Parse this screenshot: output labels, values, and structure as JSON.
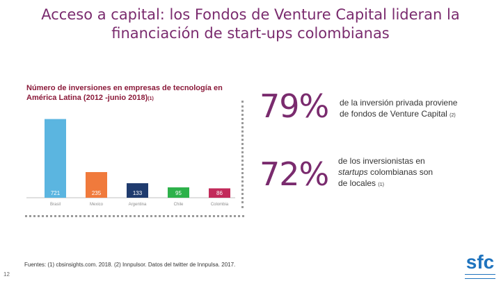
{
  "title": {
    "line1": "Acceso a capital: los Fondos de Venture Capital lideran la",
    "line2": "financiación de start-ups colombianas"
  },
  "stats": [
    {
      "value": "79%",
      "text1": "de la inversión privada proviene",
      "text2": "de fondos de Venture Capital",
      "note": "(2)"
    },
    {
      "value": "72%",
      "text1": "de los inversionistas en",
      "text2_italic": "startups",
      "text2": " colombianas son",
      "text3": "de locales",
      "note": "(1)"
    }
  ],
  "footnote": "Fuentes: (1) cbsinsights.com. 2018. (2) Innpulsor. Datos del twitter de Innpulsa. 2017.",
  "page_number": "12",
  "logo": "sfc",
  "colors": {
    "title": "#7a2b6e",
    "chart_title": "#8b1a3a",
    "brasil": "#5bb5e0",
    "mexico": "#f07a3c",
    "argentina": "#1f3b6e",
    "chile": "#2db14a",
    "colombia": "#c22a5a"
  },
  "chart_data": {
    "type": "bar",
    "title": "Número de inversiones en empresas de tecnología en América Latina (2012 -junio 2018)",
    "title_note": "(1)",
    "categories": [
      "Brasil",
      "Mexico",
      "Argentina",
      "Chile",
      "Colombia"
    ],
    "values": [
      721,
      235,
      133,
      95,
      86
    ],
    "ylim": [
      0,
      750
    ],
    "grid": false,
    "legend": "none",
    "data_labels": "inside-bar-bottom"
  }
}
